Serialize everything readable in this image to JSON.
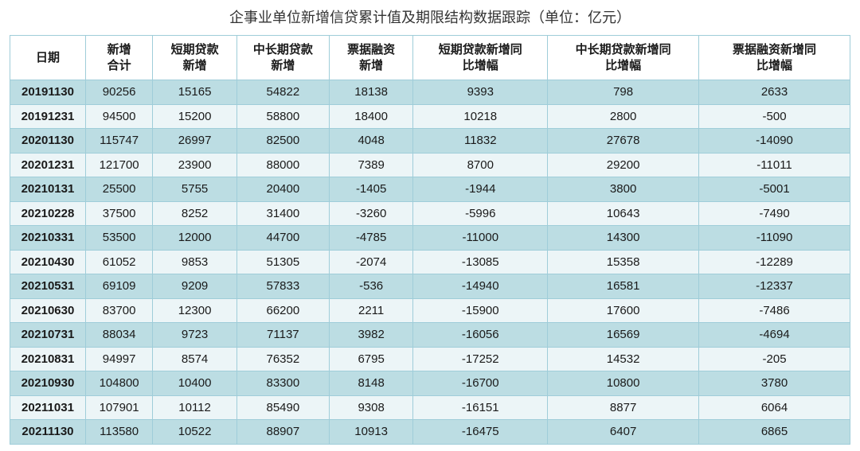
{
  "title": "企事业单位新增信贷累计值及期限结构数据跟踪（单位：亿元）",
  "table": {
    "type": "table",
    "background_color": "#ffffff",
    "border_color": "#9fcdd9",
    "row_odd_bg": "#bcdde3",
    "row_even_bg": "#ecf5f7",
    "header_bg": "#ffffff",
    "header_fontsize": 15,
    "cell_fontsize": 15,
    "text_color": "#1a1a1a",
    "columns": [
      {
        "key": "date",
        "label": "日期",
        "width_pct": 9,
        "bold_cells": true
      },
      {
        "key": "total",
        "label": "新增\n合计",
        "width_pct": 8
      },
      {
        "key": "short",
        "label": "短期贷款\n新增",
        "width_pct": 10
      },
      {
        "key": "mlong",
        "label": "中长期贷款\n新增",
        "width_pct": 11
      },
      {
        "key": "bill",
        "label": "票据融资\n新增",
        "width_pct": 10
      },
      {
        "key": "short_yoy",
        "label": "短期贷款新增同\n比增幅",
        "width_pct": 16
      },
      {
        "key": "mlong_yoy",
        "label": "中长期贷款新增同\n比增幅",
        "width_pct": 18
      },
      {
        "key": "bill_yoy",
        "label": "票据融资新增同\n比增幅",
        "width_pct": 18
      }
    ],
    "rows": [
      [
        "20191130",
        "90256",
        "15165",
        "54822",
        "18138",
        "9393",
        "798",
        "2633"
      ],
      [
        "20191231",
        "94500",
        "15200",
        "58800",
        "18400",
        "10218",
        "2800",
        "-500"
      ],
      [
        "20201130",
        "115747",
        "26997",
        "82500",
        "4048",
        "11832",
        "27678",
        "-14090"
      ],
      [
        "20201231",
        "121700",
        "23900",
        "88000",
        "7389",
        "8700",
        "29200",
        "-11011"
      ],
      [
        "20210131",
        "25500",
        "5755",
        "20400",
        "-1405",
        "-1944",
        "3800",
        "-5001"
      ],
      [
        "20210228",
        "37500",
        "8252",
        "31400",
        "-3260",
        "-5996",
        "10643",
        "-7490"
      ],
      [
        "20210331",
        "53500",
        "12000",
        "44700",
        "-4785",
        "-11000",
        "14300",
        "-11090"
      ],
      [
        "20210430",
        "61052",
        "9853",
        "51305",
        "-2074",
        "-13085",
        "15358",
        "-12289"
      ],
      [
        "20210531",
        "69109",
        "9209",
        "57833",
        "-536",
        "-14940",
        "16581",
        "-12337"
      ],
      [
        "20210630",
        "83700",
        "12300",
        "66200",
        "2211",
        "-15900",
        "17600",
        "-7486"
      ],
      [
        "20210731",
        "88034",
        "9723",
        "71137",
        "3982",
        "-16056",
        "16569",
        "-4694"
      ],
      [
        "20210831",
        "94997",
        "8574",
        "76352",
        "6795",
        "-17252",
        "14532",
        "-205"
      ],
      [
        "20210930",
        "104800",
        "10400",
        "83300",
        "8148",
        "-16700",
        "10800",
        "3780"
      ],
      [
        "20211031",
        "107901",
        "10112",
        "85490",
        "9308",
        "-16151",
        "8877",
        "6064"
      ],
      [
        "20211130",
        "113580",
        "10522",
        "88907",
        "10913",
        "-16475",
        "6407",
        "6865"
      ]
    ]
  }
}
